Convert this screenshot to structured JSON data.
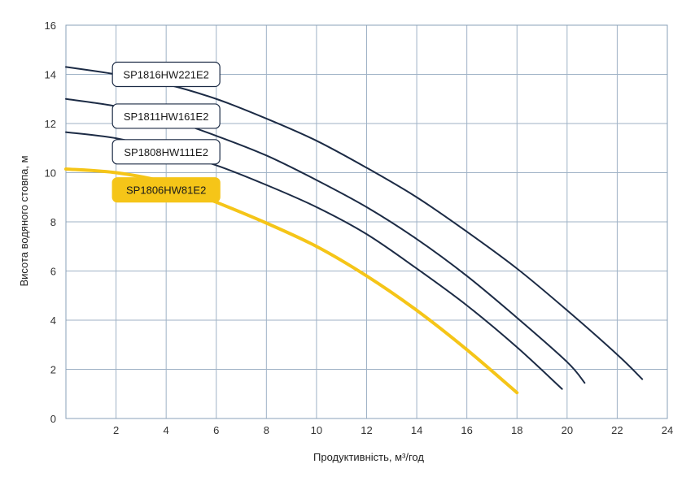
{
  "chart_data": {
    "type": "line",
    "title": "",
    "xlabel": "Продуктивність, м³/год",
    "ylabel": "Висота водяного стовпа, м",
    "xlim": [
      0,
      24
    ],
    "ylim": [
      0,
      16
    ],
    "xticks": [
      2,
      4,
      6,
      8,
      10,
      12,
      14,
      16,
      18,
      20,
      22,
      24
    ],
    "yticks": [
      0,
      2,
      4,
      6,
      8,
      10,
      12,
      14,
      16
    ],
    "grid": true,
    "series": [
      {
        "name": "SP1816HW221E2",
        "color": "#1c2b45",
        "x": [
          0,
          2,
          4,
          6,
          8,
          10,
          12,
          14,
          16,
          18,
          20,
          22,
          23
        ],
        "y": [
          14.3,
          14.0,
          13.6,
          13.0,
          12.2,
          11.3,
          10.2,
          9.0,
          7.6,
          6.1,
          4.4,
          2.6,
          1.6
        ],
        "label_at": [
          4,
          14.0
        ]
      },
      {
        "name": "SP1811HW161E2",
        "color": "#1c2b45",
        "x": [
          0,
          2,
          4,
          6,
          8,
          10,
          12,
          14,
          16,
          18,
          20,
          20.7
        ],
        "y": [
          13.0,
          12.7,
          12.2,
          11.5,
          10.7,
          9.7,
          8.6,
          7.3,
          5.8,
          4.1,
          2.3,
          1.45
        ],
        "label_at": [
          4,
          12.3
        ]
      },
      {
        "name": "SP1808HW111E2",
        "color": "#1c2b45",
        "x": [
          0,
          2,
          4,
          6,
          8,
          10,
          12,
          14,
          16,
          18,
          19.8
        ],
        "y": [
          11.65,
          11.4,
          10.9,
          10.3,
          9.5,
          8.6,
          7.5,
          6.1,
          4.6,
          2.9,
          1.2
        ],
        "label_at": [
          4,
          10.85
        ]
      },
      {
        "name": "SP1806HW81E2",
        "color": "#f5c518",
        "x": [
          0,
          2,
          4,
          6,
          8,
          10,
          12,
          14,
          16,
          18
        ],
        "y": [
          10.15,
          10.0,
          9.6,
          8.8,
          7.95,
          7.0,
          5.8,
          4.4,
          2.8,
          1.05
        ],
        "label_at": [
          4,
          9.3
        ]
      }
    ]
  }
}
